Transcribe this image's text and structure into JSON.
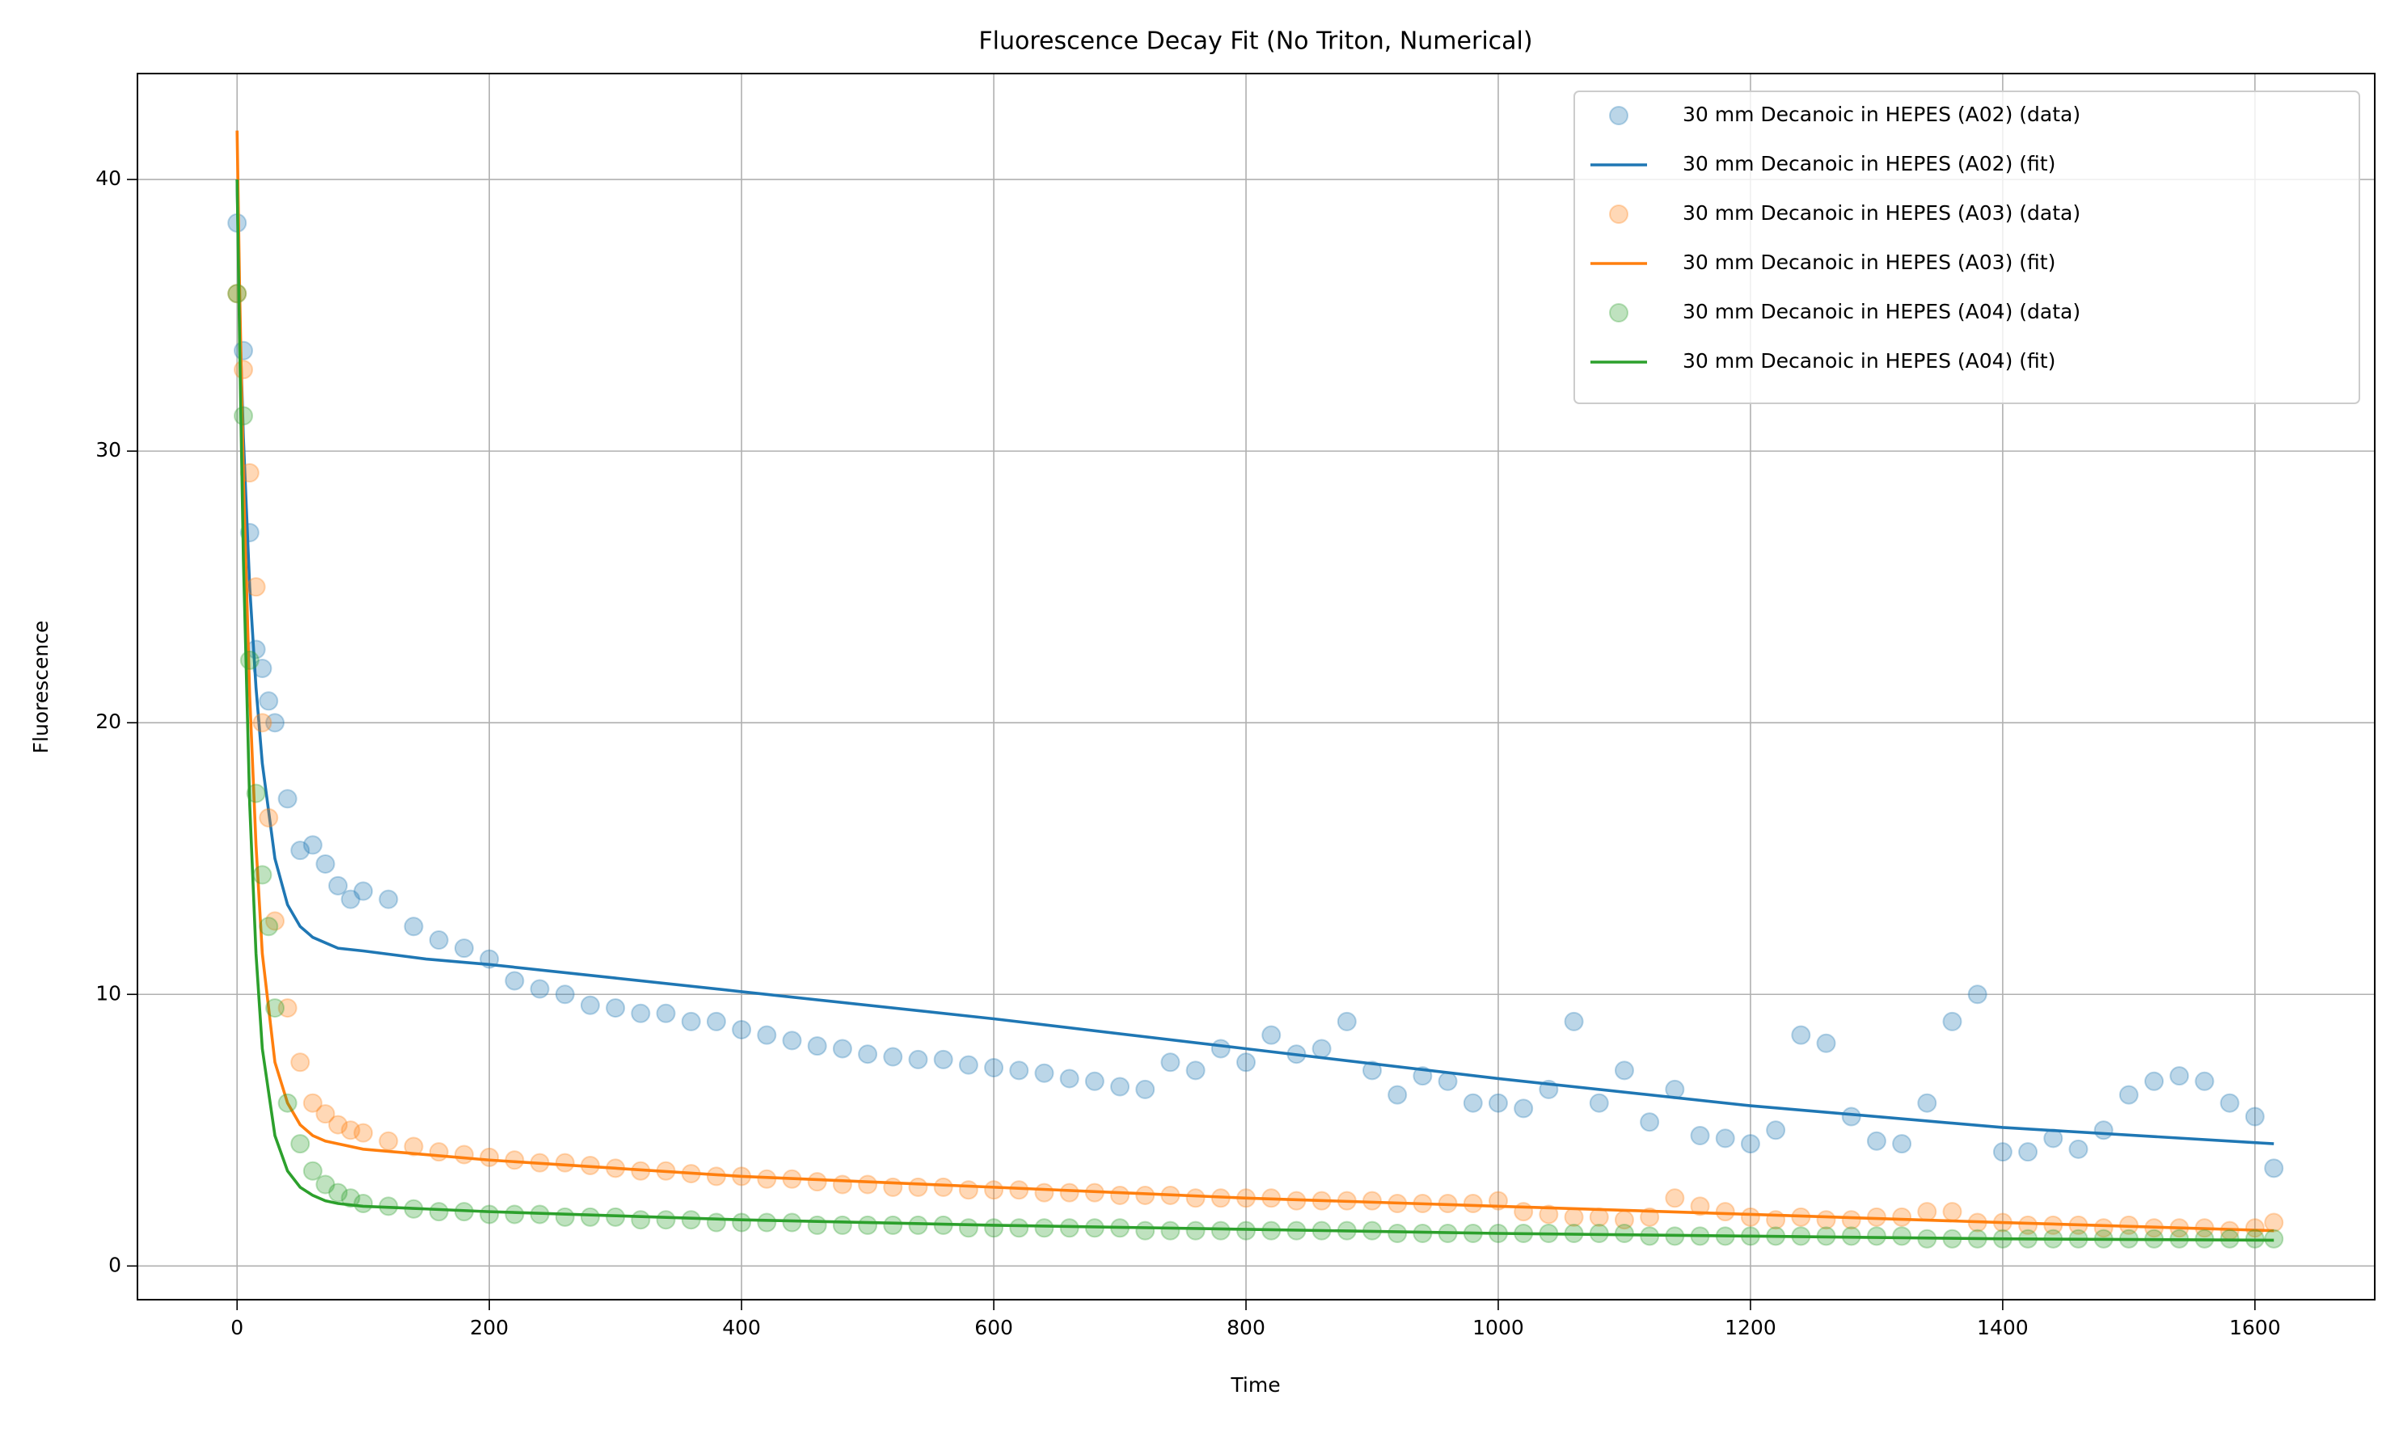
{
  "chart_data": {
    "type": "scatter",
    "title": "Fluorescence Decay Fit (No Triton, Numerical)",
    "x_label": "Time",
    "y_label": "Fluorescence",
    "xlim": [
      -79,
      1695
    ],
    "ylim": [
      -1.24,
      43.9
    ],
    "xticks": [
      0,
      200,
      400,
      600,
      800,
      1000,
      1200,
      1400,
      1600
    ],
    "yticks": [
      0,
      10,
      20,
      30,
      40
    ],
    "grid": true,
    "legend": "upper right",
    "series": [
      {
        "name": "30 mm Decanoic in HEPES (A02) (data)",
        "type": "scatter",
        "color": "#1f77b4",
        "x": [
          0,
          5,
          10,
          15,
          20,
          25,
          30,
          40,
          50,
          60,
          70,
          80,
          90,
          100,
          120,
          140,
          160,
          180,
          200,
          220,
          240,
          260,
          280,
          300,
          320,
          340,
          360,
          380,
          400,
          420,
          440,
          460,
          480,
          500,
          520,
          540,
          560,
          580,
          600,
          620,
          640,
          660,
          680,
          700,
          720,
          740,
          760,
          780,
          800,
          820,
          840,
          860,
          880,
          900,
          920,
          940,
          960,
          980,
          1000,
          1020,
          1040,
          1060,
          1080,
          1100,
          1120,
          1140,
          1160,
          1180,
          1200,
          1220,
          1240,
          1260,
          1280,
          1300,
          1320,
          1340,
          1360,
          1380,
          1400,
          1420,
          1440,
          1460,
          1480,
          1500,
          1520,
          1540,
          1560,
          1580,
          1600,
          1615
        ],
        "values": [
          38.4,
          33.7,
          27,
          22.7,
          22,
          20.8,
          20,
          17.2,
          15.3,
          15.5,
          14.8,
          14,
          13.5,
          13.8,
          13.5,
          12.5,
          12,
          11.7,
          11.3,
          10.5,
          10.2,
          10,
          9.6,
          9.5,
          9.3,
          9.3,
          9,
          9,
          8.7,
          8.5,
          8.3,
          8.1,
          8,
          7.8,
          7.7,
          7.6,
          7.6,
          7.4,
          7.3,
          7.2,
          7.1,
          6.9,
          6.8,
          6.6,
          6.5,
          7.5,
          7.2,
          8,
          7.5,
          8.5,
          7.8,
          8,
          9,
          7.2,
          6.3,
          7,
          6.8,
          6,
          6,
          5.8,
          6.5,
          9,
          6,
          7.2,
          5.3,
          6.5,
          4.8,
          4.7,
          4.5,
          5,
          8.5,
          8.2,
          5.5,
          4.6,
          4.5,
          6,
          9,
          10,
          4.2,
          4.2,
          4.7,
          4.3,
          5,
          6.3,
          6.8,
          7,
          6.8,
          6,
          5.5,
          3.6
        ]
      },
      {
        "name": "30 mm Decanoic in HEPES (A02) (fit)",
        "type": "line",
        "color": "#1f77b4",
        "x": [
          0,
          2,
          5,
          10,
          15,
          20,
          30,
          40,
          50,
          60,
          70,
          80,
          100,
          150,
          200,
          300,
          400,
          600,
          800,
          1000,
          1200,
          1400,
          1615
        ],
        "values": [
          40,
          35,
          30.5,
          25,
          21.3,
          18.5,
          15,
          13.3,
          12.5,
          12.1,
          11.9,
          11.7,
          11.6,
          11.3,
          11.1,
          10.6,
          10.1,
          9.1,
          8.0,
          6.9,
          5.9,
          5.1,
          4.5
        ]
      },
      {
        "name": "30 mm Decanoic in HEPES (A03) (data)",
        "type": "scatter",
        "color": "#ff7f0e",
        "x": [
          0,
          5,
          10,
          15,
          20,
          25,
          30,
          40,
          50,
          60,
          70,
          80,
          90,
          100,
          120,
          140,
          160,
          180,
          200,
          220,
          240,
          260,
          280,
          300,
          320,
          340,
          360,
          380,
          400,
          420,
          440,
          460,
          480,
          500,
          520,
          540,
          560,
          580,
          600,
          620,
          640,
          660,
          680,
          700,
          720,
          740,
          760,
          780,
          800,
          820,
          840,
          860,
          880,
          900,
          920,
          940,
          960,
          980,
          1000,
          1020,
          1040,
          1060,
          1080,
          1100,
          1120,
          1140,
          1160,
          1180,
          1200,
          1220,
          1240,
          1260,
          1280,
          1300,
          1320,
          1340,
          1360,
          1380,
          1400,
          1420,
          1440,
          1460,
          1480,
          1500,
          1520,
          1540,
          1560,
          1580,
          1600,
          1615
        ],
        "values": [
          35.8,
          33,
          29.2,
          25,
          20,
          16.5,
          12.7,
          9.5,
          7.5,
          6,
          5.6,
          5.2,
          5,
          4.9,
          4.6,
          4.4,
          4.2,
          4.1,
          4.0,
          3.9,
          3.8,
          3.8,
          3.7,
          3.6,
          3.5,
          3.5,
          3.4,
          3.3,
          3.3,
          3.2,
          3.2,
          3.1,
          3.0,
          3.0,
          2.9,
          2.9,
          2.9,
          2.8,
          2.8,
          2.8,
          2.7,
          2.7,
          2.7,
          2.6,
          2.6,
          2.6,
          2.5,
          2.5,
          2.5,
          2.5,
          2.4,
          2.4,
          2.4,
          2.4,
          2.3,
          2.3,
          2.3,
          2.3,
          2.4,
          2.0,
          1.9,
          1.8,
          1.8,
          1.7,
          1.8,
          2.5,
          2.2,
          2.0,
          1.8,
          1.7,
          1.8,
          1.7,
          1.7,
          1.8,
          1.8,
          2.0,
          2.0,
          1.6,
          1.6,
          1.5,
          1.5,
          1.5,
          1.4,
          1.5,
          1.4,
          1.4,
          1.4,
          1.3,
          1.4,
          1.6
        ]
      },
      {
        "name": "30 mm Decanoic in HEPES (A03) (fit)",
        "type": "line",
        "color": "#ff7f0e",
        "x": [
          0,
          2,
          5,
          10,
          15,
          20,
          30,
          40,
          50,
          60,
          70,
          80,
          100,
          150,
          200,
          300,
          400,
          600,
          800,
          1000,
          1200,
          1400,
          1615
        ],
        "values": [
          41.8,
          36,
          29,
          21,
          15.5,
          11.5,
          7.5,
          6,
          5.2,
          4.8,
          4.6,
          4.5,
          4.3,
          4.1,
          3.9,
          3.6,
          3.3,
          2.9,
          2.5,
          2.2,
          1.9,
          1.6,
          1.3
        ]
      },
      {
        "name": "30 mm Decanoic in HEPES (A04) (data)",
        "type": "scatter",
        "color": "#2ca02c",
        "x": [
          0,
          5,
          10,
          15,
          20,
          25,
          30,
          40,
          50,
          60,
          70,
          80,
          90,
          100,
          120,
          140,
          160,
          180,
          200,
          220,
          240,
          260,
          280,
          300,
          320,
          340,
          360,
          380,
          400,
          420,
          440,
          460,
          480,
          500,
          520,
          540,
          560,
          580,
          600,
          620,
          640,
          660,
          680,
          700,
          720,
          740,
          760,
          780,
          800,
          820,
          840,
          860,
          880,
          900,
          920,
          940,
          960,
          980,
          1000,
          1020,
          1040,
          1060,
          1080,
          1100,
          1120,
          1140,
          1160,
          1180,
          1200,
          1220,
          1240,
          1260,
          1280,
          1300,
          1320,
          1340,
          1360,
          1380,
          1400,
          1420,
          1440,
          1460,
          1480,
          1500,
          1520,
          1540,
          1560,
          1580,
          1600,
          1615
        ],
        "values": [
          35.8,
          31.3,
          22.3,
          17.4,
          14.4,
          12.5,
          9.5,
          6,
          4.5,
          3.5,
          3,
          2.7,
          2.5,
          2.3,
          2.2,
          2.1,
          2.0,
          2.0,
          1.9,
          1.9,
          1.9,
          1.8,
          1.8,
          1.8,
          1.7,
          1.7,
          1.7,
          1.6,
          1.6,
          1.6,
          1.6,
          1.5,
          1.5,
          1.5,
          1.5,
          1.5,
          1.5,
          1.4,
          1.4,
          1.4,
          1.4,
          1.4,
          1.4,
          1.4,
          1.3,
          1.3,
          1.3,
          1.3,
          1.3,
          1.3,
          1.3,
          1.3,
          1.3,
          1.3,
          1.2,
          1.2,
          1.2,
          1.2,
          1.2,
          1.2,
          1.2,
          1.2,
          1.2,
          1.2,
          1.1,
          1.1,
          1.1,
          1.1,
          1.1,
          1.1,
          1.1,
          1.1,
          1.1,
          1.1,
          1.1,
          1.0,
          1.0,
          1.0,
          1.0,
          1.0,
          1.0,
          1.0,
          1.0,
          1.0,
          1.0,
          1.0,
          1.0,
          1.0,
          1.0,
          1.0
        ]
      },
      {
        "name": "30 mm Decanoic in HEPES (A04) (fit)",
        "type": "line",
        "color": "#2ca02c",
        "x": [
          0,
          2,
          5,
          10,
          15,
          20,
          30,
          40,
          50,
          60,
          70,
          80,
          100,
          150,
          200,
          300,
          400,
          600,
          800,
          1000,
          1200,
          1400,
          1615
        ],
        "values": [
          40,
          34,
          26,
          17,
          11.5,
          8,
          4.8,
          3.5,
          2.9,
          2.6,
          2.4,
          2.3,
          2.2,
          2.1,
          2.0,
          1.85,
          1.7,
          1.5,
          1.35,
          1.2,
          1.1,
          1.0,
          0.95
        ]
      }
    ]
  }
}
